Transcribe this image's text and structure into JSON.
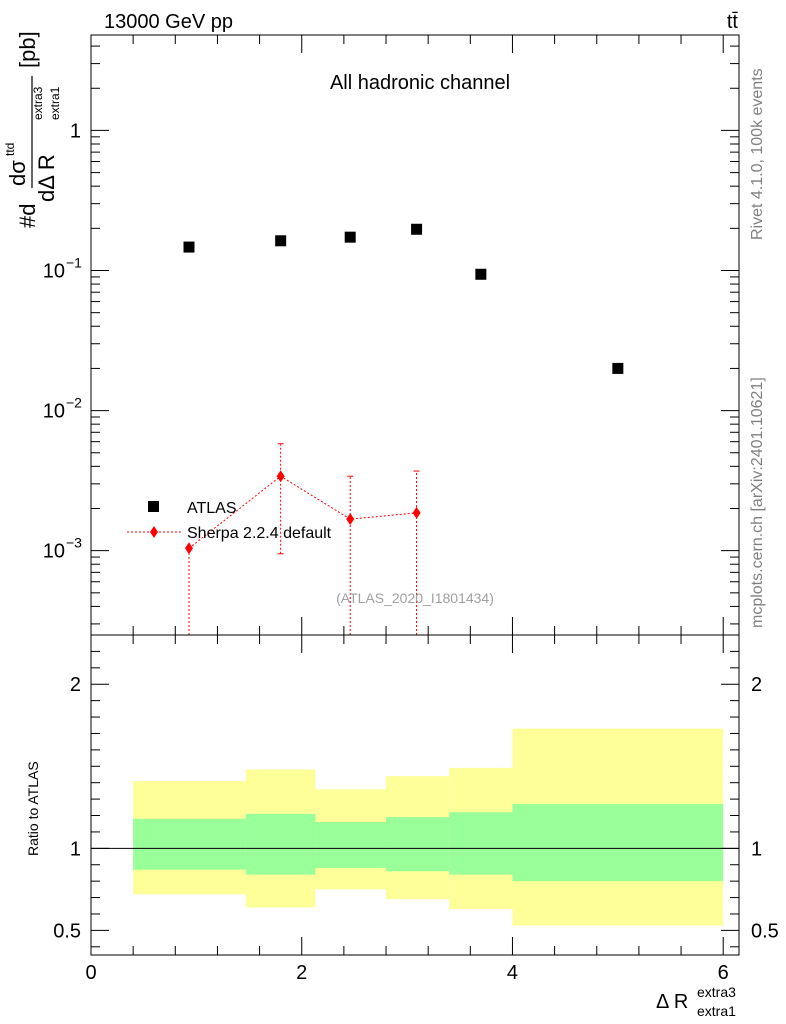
{
  "header": {
    "energy_label": "13000 GeV pp",
    "process_label": "tt̄",
    "channel_label": "All hadronic channel",
    "side_label_top": "Rivet 4.1.0,  100k events",
    "side_label_bottom": "mcplots.cern.ch [arXiv:2401.10621]",
    "analysis_label": "(ATLAS_2020_I1801434)"
  },
  "colors": {
    "atlas": "#000000",
    "sherpa": "#ff0000",
    "band_inner": "#99ff99",
    "band_outer": "#ffff99",
    "side_text": "#808080"
  },
  "chart_data": [
    {
      "type": "scatter",
      "scale": "log",
      "ylabel": {
        "prefix": "#d",
        "numerator": "dσ",
        "numerator_sup": "ttd",
        "denominator": "dΔ R",
        "denominator_sub": "extra1",
        "denominator_sup": "extra3",
        "unit": "[pb]"
      },
      "xlim": [
        0,
        6.15
      ],
      "ylim": [
        0.00025,
        4.8
      ],
      "y_ticks": [
        {
          "value": 0.001,
          "base": "10",
          "exp": "−3"
        },
        {
          "value": 0.01,
          "base": "10",
          "exp": "−2"
        },
        {
          "value": 0.1,
          "base": "10",
          "exp": "−1"
        },
        {
          "value": 1,
          "label": "1"
        }
      ],
      "series": [
        {
          "name": "ATLAS",
          "marker": "square",
          "points": [
            {
              "x": 0.93,
              "y": 0.147
            },
            {
              "x": 1.8,
              "y": 0.163
            },
            {
              "x": 2.46,
              "y": 0.173
            },
            {
              "x": 3.09,
              "y": 0.197
            },
            {
              "x": 3.7,
              "y": 0.094
            },
            {
              "x": 5.0,
              "y": 0.02
            }
          ]
        },
        {
          "name": "Sherpa 2.2.4 default",
          "marker": "diamond",
          "line": "dotted",
          "points": [
            {
              "x": 0.93,
              "y": 0.00104,
              "ylo": 0.0001,
              "yhi": 0.00105
            },
            {
              "x": 1.8,
              "y": 0.0034,
              "ylo": 0.00095,
              "yhi": 0.0058
            },
            {
              "x": 2.46,
              "y": 0.00168,
              "ylo": 0.0001,
              "yhi": 0.0034
            },
            {
              "x": 3.09,
              "y": 0.00186,
              "ylo": 0.0001,
              "yhi": 0.0037
            }
          ]
        }
      ],
      "legend": {
        "placement": "bottom-left"
      }
    },
    {
      "type": "area",
      "ylabel": "Ratio to ATLAS",
      "xlabel": {
        "text": "Δ R",
        "sub": "extra1",
        "sup": "extra3"
      },
      "xlim": [
        0,
        6.15
      ],
      "ylim": [
        0.35,
        2.3
      ],
      "x_ticks": [
        0,
        2,
        4,
        6
      ],
      "y_ticks": [
        0.5,
        1,
        2
      ],
      "reference_line": 1,
      "bins": [
        {
          "x0": 0.4,
          "x1": 1.47,
          "inner": [
            0.87,
            1.18
          ],
          "outer": [
            0.72,
            1.41
          ]
        },
        {
          "x0": 1.47,
          "x1": 2.13,
          "inner": [
            0.84,
            1.21
          ],
          "outer": [
            0.64,
            1.48
          ]
        },
        {
          "x0": 2.13,
          "x1": 2.8,
          "inner": [
            0.88,
            1.16
          ],
          "outer": [
            0.75,
            1.36
          ]
        },
        {
          "x0": 2.8,
          "x1": 3.4,
          "inner": [
            0.86,
            1.19
          ],
          "outer": [
            0.69,
            1.44
          ]
        },
        {
          "x0": 3.4,
          "x1": 4.0,
          "inner": [
            0.84,
            1.22
          ],
          "outer": [
            0.63,
            1.49
          ]
        },
        {
          "x0": 4.0,
          "x1": 6.0,
          "inner": [
            0.8,
            1.27
          ],
          "outer": [
            0.53,
            1.73
          ]
        }
      ]
    }
  ]
}
